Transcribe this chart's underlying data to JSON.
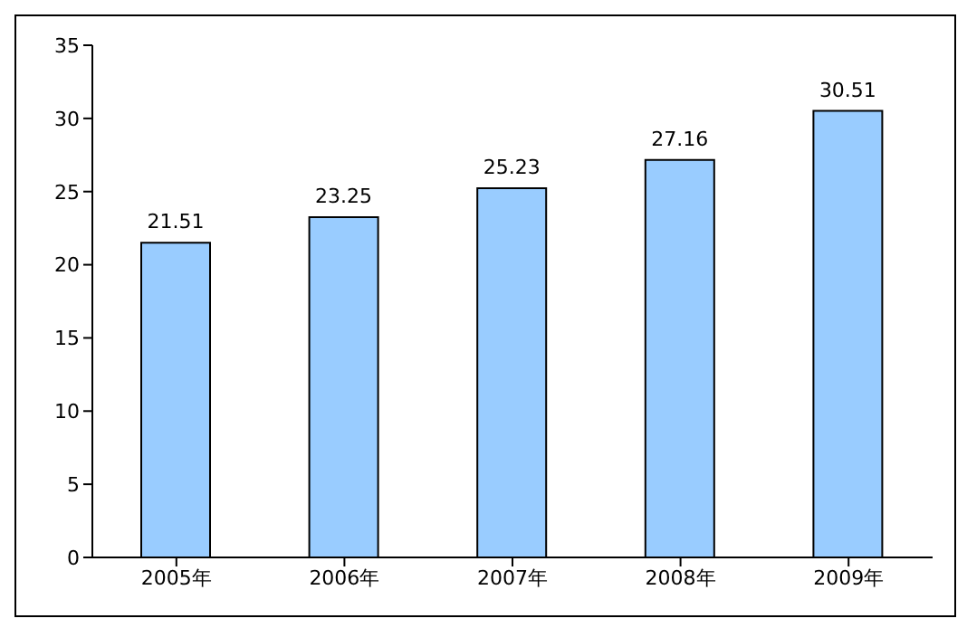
{
  "chart_data": {
    "type": "bar",
    "categories": [
      "2005年",
      "2006年",
      "2007年",
      "2008年",
      "2009年"
    ],
    "values": [
      21.51,
      23.25,
      25.23,
      27.16,
      30.51
    ],
    "color": "#99ccff",
    "ylim": [
      0,
      35
    ],
    "yticks": [
      0,
      5,
      10,
      15,
      20,
      25,
      30,
      35
    ],
    "data_labels": true,
    "grid": false,
    "legend": false
  }
}
